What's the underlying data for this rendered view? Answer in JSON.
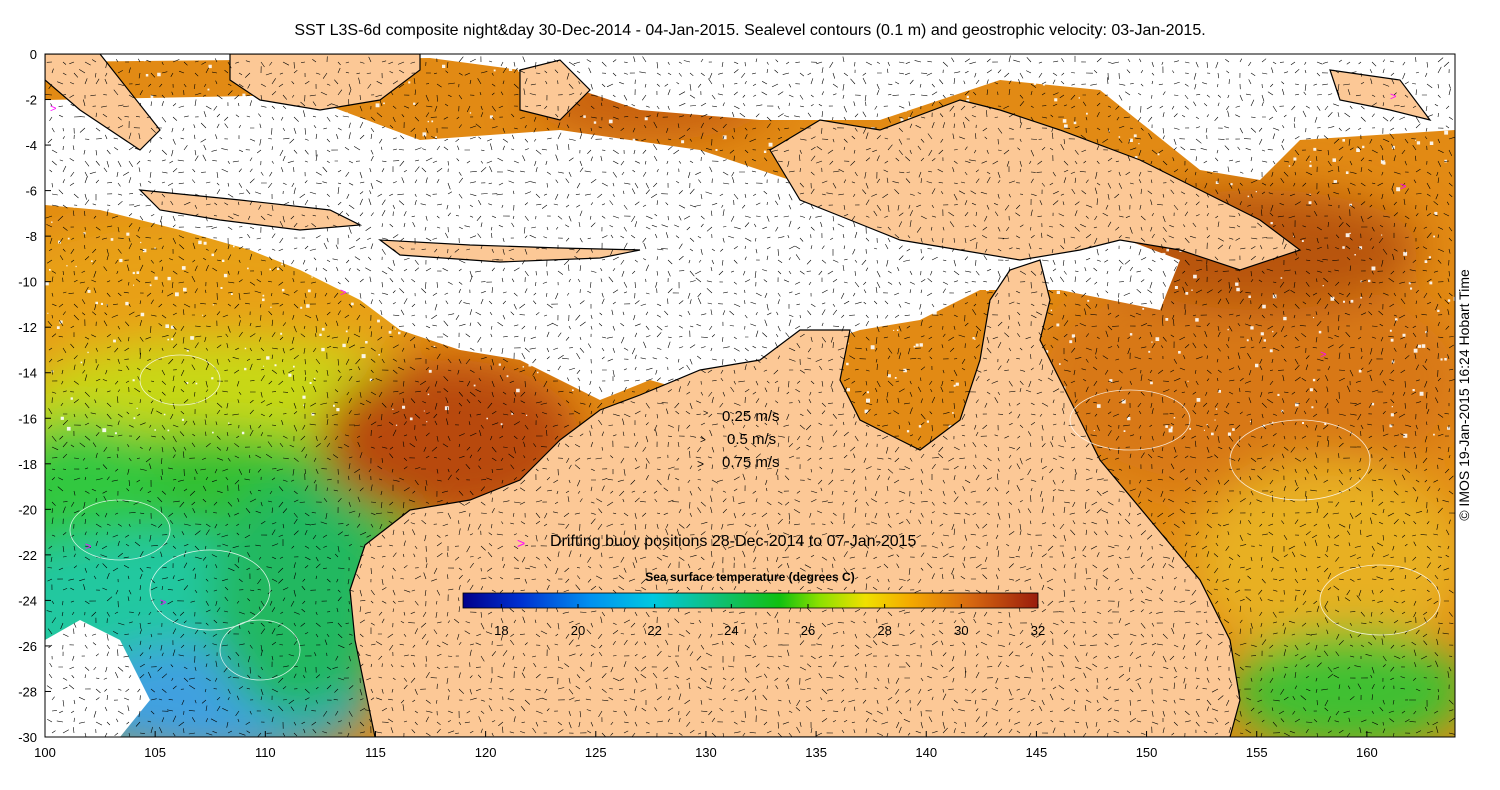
{
  "title": "SST L3S-6d composite night&day 30-Dec-2014 - 04-Jan-2015. Sealevel contours (0.1 m) and geostrophic velocity: 03-Jan-2015.",
  "credit": "© IMOS 19-Jan-2015 16:24 Hobart Time",
  "map": {
    "lon_range": [
      100,
      164
    ],
    "lat_range": [
      -30,
      0
    ],
    "lon_ticks": [
      "100",
      "105",
      "110",
      "115",
      "120",
      "125",
      "130",
      "135",
      "140",
      "145",
      "150",
      "155",
      "160"
    ],
    "lat_ticks": [
      "0",
      "-2",
      "-4",
      "-6",
      "-8",
      "-10",
      "-12",
      "-14",
      "-16",
      "-18",
      "-20",
      "-22",
      "-24",
      "-26",
      "-28",
      "-30"
    ],
    "colors": {
      "land": "#fcc896",
      "cloud": "#ffffff",
      "coast": "#000000",
      "buoy": "#ff00ff"
    }
  },
  "velocity_legend": [
    {
      "label": "0.25 m/s"
    },
    {
      "label": "0.5 m/s"
    },
    {
      "label": "0.75 m/s"
    }
  ],
  "buoy_legend": {
    "label": "Drifting buoy positions 28-Dec-2014 to 07-Jan-2015",
    "symbol": ">"
  },
  "colorbar": {
    "title": "Sea surface temperature (degrees C)",
    "min": 17,
    "max": 32,
    "tick_labels": [
      "18",
      "20",
      "22",
      "24",
      "26",
      "28",
      "30",
      "32"
    ]
  }
}
